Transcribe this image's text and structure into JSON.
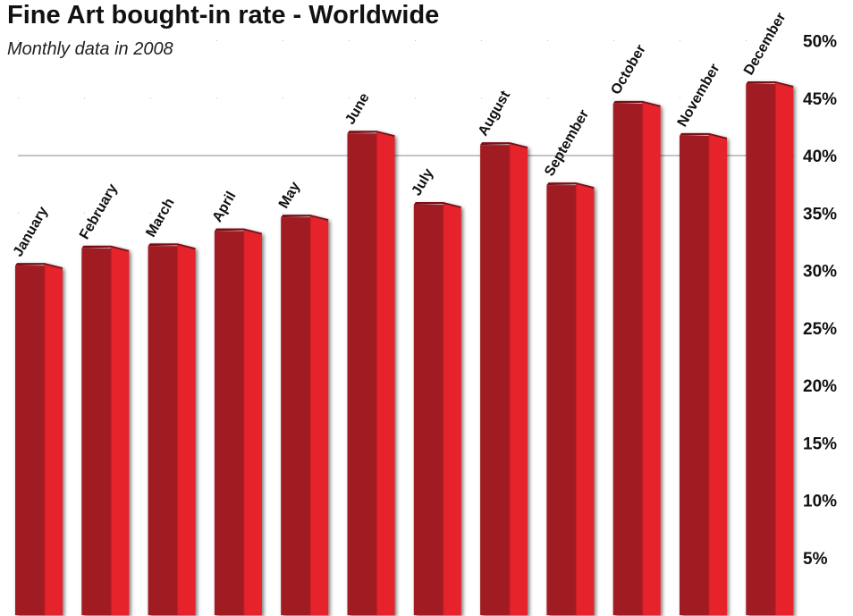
{
  "chart_data": {
    "type": "bar",
    "title": "Fine Art bought-in rate - Worldwide",
    "subtitle": "Monthly data in 2008",
    "categories": [
      "January",
      "February",
      "March",
      "April",
      "May",
      "June",
      "July",
      "August",
      "September",
      "October",
      "November",
      "December"
    ],
    "series": [
      {
        "values": [
          30.5,
          32.0,
          32.2,
          33.5,
          34.7,
          42.0,
          35.8,
          41.0,
          37.5,
          44.6,
          41.8,
          46.3
        ]
      }
    ],
    "ylim": [
      0,
      50
    ],
    "y_ticks": [
      5,
      10,
      15,
      20,
      25,
      30,
      35,
      40,
      45,
      50
    ],
    "y_tick_labels": [
      "5%",
      "10%",
      "15%",
      "20%",
      "25%",
      "30%",
      "35%",
      "40%",
      "45%",
      "50%"
    ],
    "y_axis_position": "right",
    "grid": true,
    "legend": "none",
    "xlabel": "",
    "ylabel": "",
    "colors": {
      "bar_front": "#a11b22",
      "bar_side": "#e6232b",
      "grid": "#aaaaaa",
      "text": "#111111"
    }
  }
}
